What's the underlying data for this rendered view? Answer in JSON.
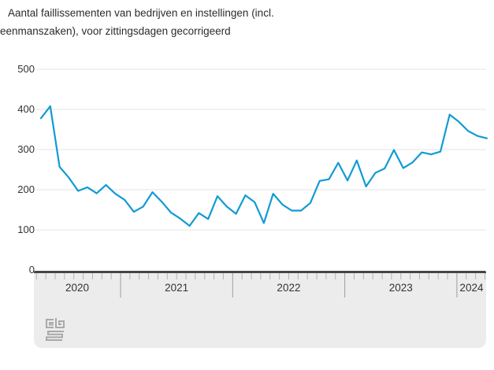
{
  "title": {
    "line1": "Aantal faillissementen van bedrijven en instellingen (incl.",
    "line2": "eenmanszaken), voor zittingsdagen gecorrigeerd"
  },
  "chart_data": {
    "type": "line",
    "title": "Aantal faillissementen van bedrijven en instellingen (incl. eenmanszaken), voor zittingsdagen gecorrigeerd",
    "frequency": "monthly",
    "start_month": "2020-04",
    "end_month": "2024-04",
    "values": [
      378,
      408,
      257,
      230,
      197,
      206,
      191,
      212,
      190,
      175,
      145,
      158,
      194,
      170,
      143,
      128,
      110,
      142,
      127,
      184,
      158,
      140,
      186,
      169,
      117,
      190,
      163,
      148,
      148,
      167,
      222,
      226,
      267,
      223,
      273,
      208,
      242,
      253,
      299,
      254,
      268,
      293,
      288,
      295,
      387,
      369,
      346,
      334,
      328
    ],
    "x_tick_labels": [
      "2020",
      "2021",
      "2022",
      "2023",
      "2024"
    ],
    "y_ticks": [
      0,
      100,
      200,
      300,
      400,
      500
    ],
    "ylim": [
      0,
      500
    ],
    "grid": "horizontal",
    "legend": "none",
    "line_color": "#119bd4"
  },
  "axis_panel": {
    "background": "#ececec",
    "year_labels": [
      "2020",
      "2021",
      "2022",
      "2023",
      "2024"
    ]
  },
  "branding": {
    "logo": "cbs-logo"
  }
}
